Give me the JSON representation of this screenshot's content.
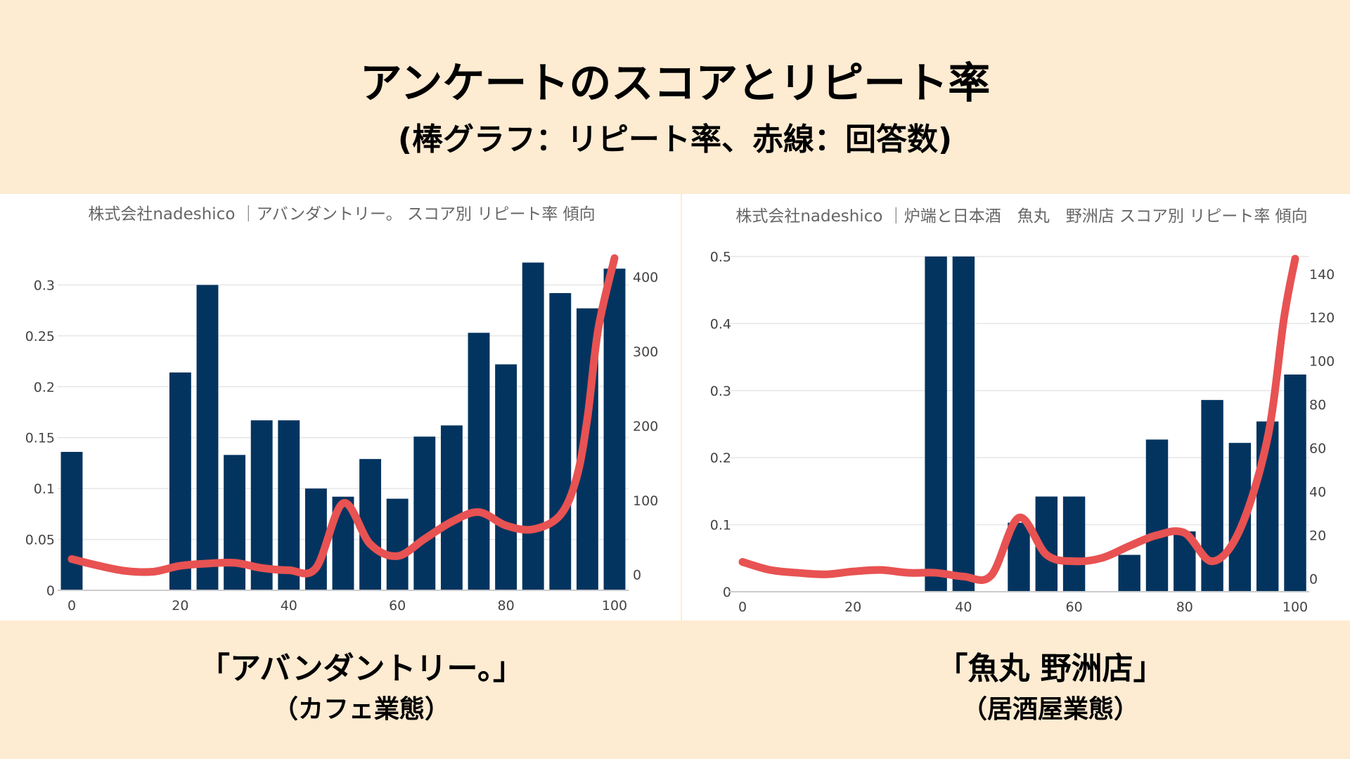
{
  "header": {
    "title": "アンケートのスコアとリピート率",
    "subtitle": "(棒グラフ：リピート率、赤線：回答数)"
  },
  "colors": {
    "background": "#fdebd2",
    "bar": "#03345f",
    "line": "#e85252"
  },
  "captions": {
    "left": {
      "name": "「アバンダントリー。」",
      "type": "（カフェ業態）"
    },
    "right": {
      "name": "「魚丸 野洲店」",
      "type": "（居酒屋業態）"
    }
  },
  "chart_data": [
    {
      "type": "bar+line",
      "title": "株式会社nadeshico ｜アバンダントリー。 スコア別 リピート率 傾向",
      "x_ticks": [
        0,
        20,
        40,
        60,
        80,
        100
      ],
      "y_left_ticks": [
        "0",
        "0.05",
        "0.1",
        "0.15",
        "0.2",
        "0.25",
        "0.3"
      ],
      "y_right_ticks": [
        "0",
        "100",
        "200",
        "300",
        "400"
      ],
      "ylim_left": [
        0,
        0.33
      ],
      "ylim_right": [
        -21,
        430
      ],
      "grid": true,
      "bars": {
        "x": [
          0,
          20,
          25,
          30,
          35,
          40,
          45,
          50,
          55,
          60,
          65,
          70,
          75,
          80,
          85,
          90,
          95,
          100
        ],
        "values": [
          0.136,
          0.214,
          0.3,
          0.133,
          0.167,
          0.167,
          0.1,
          0.092,
          0.129,
          0.09,
          0.151,
          0.162,
          0.253,
          0.222,
          0.322,
          0.292,
          0.277,
          0.316
        ]
      },
      "line": {
        "x": [
          0,
          5,
          10,
          15,
          20,
          25,
          30,
          35,
          40,
          45,
          50,
          55,
          60,
          65,
          70,
          75,
          80,
          85,
          90,
          93,
          95,
          97,
          100
        ],
        "values": [
          21,
          12,
          5,
          4,
          12,
          15,
          16,
          9,
          6,
          9,
          96,
          41,
          25,
          48,
          71,
          84,
          66,
          61,
          80,
          130,
          210,
          330,
          425
        ]
      }
    },
    {
      "type": "bar+line",
      "title": "株式会社nadeshico ｜炉端と日本酒　魚丸　野洲店 スコア別 リピート率 傾向",
      "x_ticks": [
        0,
        20,
        40,
        60,
        80,
        100
      ],
      "y_left_ticks": [
        "0",
        "0.1",
        "0.2",
        "0.3",
        "0.4",
        "0.5"
      ],
      "y_right_ticks": [
        "0",
        "20",
        "40",
        "60",
        "80",
        "100",
        "120",
        "140"
      ],
      "ylim_left": [
        0,
        0.5
      ],
      "ylim_right": [
        -6,
        148
      ],
      "grid": true,
      "bars": {
        "x": [
          35,
          40,
          50,
          55,
          60,
          70,
          75,
          80,
          85,
          90,
          95,
          100
        ],
        "values": [
          0.5,
          0.5,
          0.103,
          0.142,
          0.142,
          0.055,
          0.227,
          0.09,
          0.286,
          0.222,
          0.254,
          0.324
        ]
      },
      "line": {
        "x": [
          0,
          5,
          10,
          15,
          20,
          25,
          30,
          35,
          40,
          45,
          50,
          55,
          60,
          65,
          70,
          75,
          80,
          85,
          90,
          95,
          98,
          100
        ],
        "values": [
          7.7,
          4,
          2.7,
          2,
          3.3,
          4,
          2.7,
          2.7,
          1,
          1.5,
          28,
          11,
          8,
          9.5,
          15,
          20,
          21,
          8,
          22.5,
          64.5,
          120,
          147
        ]
      }
    }
  ]
}
